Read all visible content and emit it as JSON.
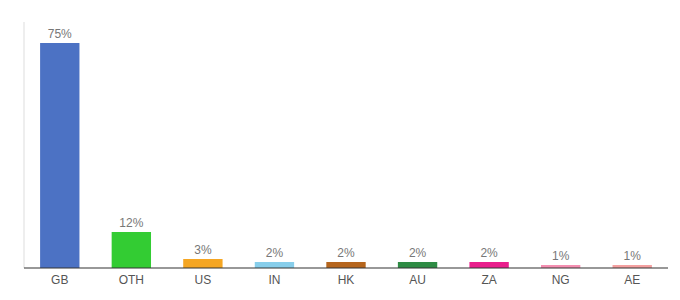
{
  "chart_data": {
    "type": "bar",
    "categories": [
      "GB",
      "OTH",
      "US",
      "IN",
      "HK",
      "AU",
      "ZA",
      "NG",
      "AE"
    ],
    "values": [
      75,
      12,
      3,
      2,
      2,
      2,
      2,
      1,
      1
    ],
    "value_labels": [
      "75%",
      "12%",
      "3%",
      "2%",
      "2%",
      "2%",
      "2%",
      "1%",
      "1%"
    ],
    "colors": [
      "#4C72C4",
      "#33CC33",
      "#F5A623",
      "#87CEEB",
      "#B5651D",
      "#2E8B44",
      "#E91E8C",
      "#F48FB1",
      "#F4A0A0"
    ],
    "ylim": [
      0,
      82
    ],
    "data_labels": true,
    "tick_labels": "x",
    "grid": false
  }
}
